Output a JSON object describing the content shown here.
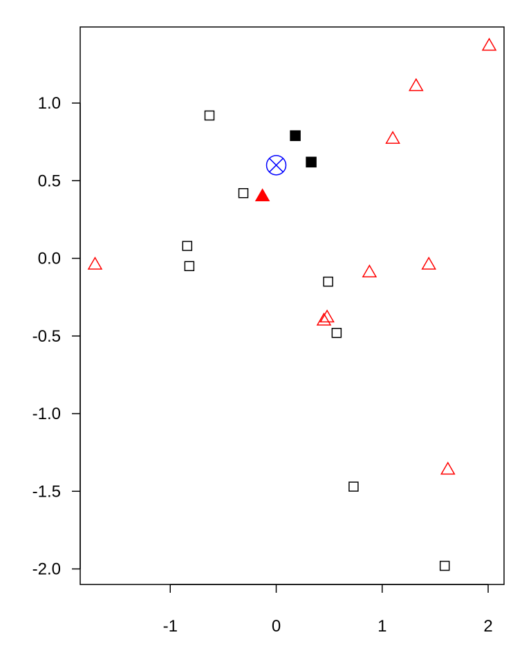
{
  "chart_data": {
    "type": "scatter",
    "title": "",
    "xlabel": "",
    "ylabel": "",
    "xlim": [
      -1.85,
      2.15
    ],
    "ylim": [
      -2.1,
      1.49
    ],
    "grid": false,
    "legend": "none",
    "x_ticks": [
      {
        "value": -1,
        "label": "-1"
      },
      {
        "value": 0,
        "label": "0"
      },
      {
        "value": 1,
        "label": "1"
      },
      {
        "value": 2,
        "label": "2"
      }
    ],
    "y_ticks": [
      {
        "value": 1.0,
        "label": "1.0"
      },
      {
        "value": 0.5,
        "label": "0.5"
      },
      {
        "value": 0.0,
        "label": "0.0"
      },
      {
        "value": -0.5,
        "label": "-0.5"
      },
      {
        "value": -1.0,
        "label": "-1.0"
      },
      {
        "value": -1.5,
        "label": "-1.5"
      },
      {
        "value": -2.0,
        "label": "-2.0"
      }
    ],
    "series": [
      {
        "marker": "open-square",
        "color": "#000000",
        "points": [
          {
            "x": -0.63,
            "y": 0.92
          },
          {
            "x": -0.31,
            "y": 0.42
          },
          {
            "x": -0.84,
            "y": 0.08
          },
          {
            "x": -0.82,
            "y": -0.05
          },
          {
            "x": 0.49,
            "y": -0.15
          },
          {
            "x": 0.57,
            "y": -0.48
          },
          {
            "x": 0.73,
            "y": -1.47
          },
          {
            "x": 1.59,
            "y": -1.98
          }
        ]
      },
      {
        "marker": "filled-square",
        "color": "#000000",
        "points": [
          {
            "x": 0.18,
            "y": 0.79
          },
          {
            "x": 0.33,
            "y": 0.62
          }
        ]
      },
      {
        "marker": "open-triangle",
        "color": "#ff0000",
        "points": [
          {
            "x": 2.01,
            "y": 1.37
          },
          {
            "x": 1.32,
            "y": 1.11
          },
          {
            "x": 1.1,
            "y": 0.77
          },
          {
            "x": -1.71,
            "y": -0.04
          },
          {
            "x": 0.88,
            "y": -0.09
          },
          {
            "x": 1.44,
            "y": -0.04
          },
          {
            "x": 0.48,
            "y": -0.38
          },
          {
            "x": 0.45,
            "y": -0.4
          },
          {
            "x": 1.62,
            "y": -1.36
          }
        ]
      },
      {
        "marker": "filled-triangle",
        "color": "#ff0000",
        "points": [
          {
            "x": -0.13,
            "y": 0.4
          }
        ]
      },
      {
        "marker": "circle-x",
        "color": "#0000ff",
        "points": [
          {
            "x": 0.0,
            "y": 0.6
          }
        ]
      }
    ]
  }
}
